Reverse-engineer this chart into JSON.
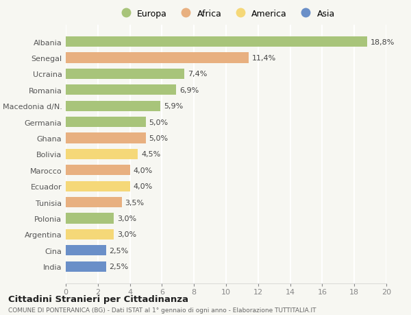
{
  "countries": [
    "Albania",
    "Senegal",
    "Ucraina",
    "Romania",
    "Macedonia d/N.",
    "Germania",
    "Ghana",
    "Bolivia",
    "Marocco",
    "Ecuador",
    "Tunisia",
    "Polonia",
    "Argentina",
    "Cina",
    "India"
  ],
  "values": [
    18.8,
    11.4,
    7.4,
    6.9,
    5.9,
    5.0,
    5.0,
    4.5,
    4.0,
    4.0,
    3.5,
    3.0,
    3.0,
    2.5,
    2.5
  ],
  "continents": [
    "Europa",
    "Africa",
    "Europa",
    "Europa",
    "Europa",
    "Europa",
    "Africa",
    "America",
    "Africa",
    "America",
    "Africa",
    "Europa",
    "America",
    "Asia",
    "Asia"
  ],
  "continent_colors": {
    "Europa": "#a8c47a",
    "Africa": "#e8b080",
    "America": "#f5d878",
    "Asia": "#6a8fc8"
  },
  "legend_order": [
    "Europa",
    "Africa",
    "America",
    "Asia"
  ],
  "xlim": [
    0,
    20
  ],
  "xticks": [
    0,
    2,
    4,
    6,
    8,
    10,
    12,
    14,
    16,
    18,
    20
  ],
  "title": "Cittadini Stranieri per Cittadinanza",
  "subtitle": "COMUNE DI PONTERANICA (BG) - Dati ISTAT al 1° gennaio di ogni anno - Elaborazione TUTTITALIA.IT",
  "background_color": "#f7f7f2",
  "bar_height": 0.65,
  "label_fontsize": 8,
  "tick_fontsize": 8
}
